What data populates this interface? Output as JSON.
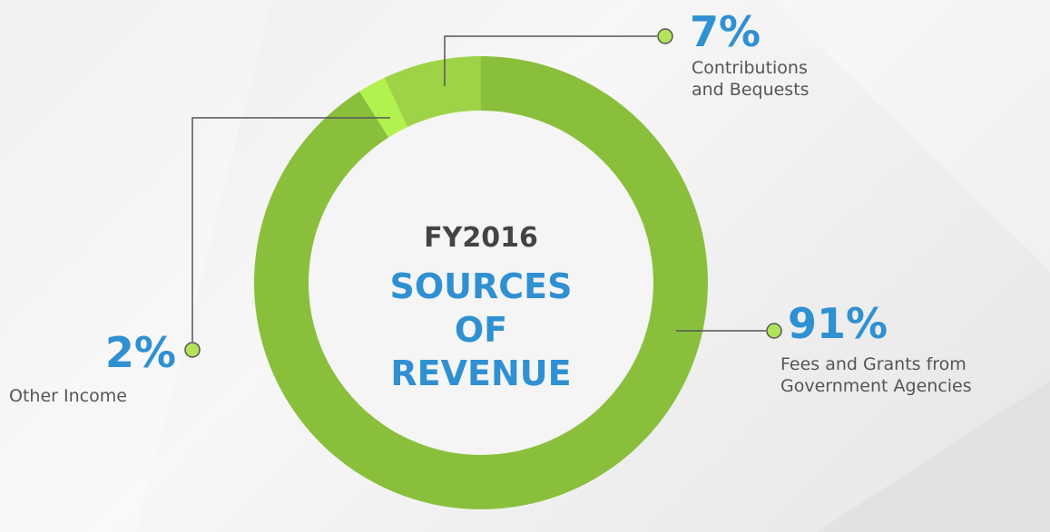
{
  "chart_data": {
    "type": "donut",
    "subtitle": "FY2016",
    "title": "SOURCES OF REVENUE",
    "categories": [
      "Fees and Grants from Government Agencies",
      "Other Income",
      "Contributions and Bequests"
    ],
    "values": [
      91,
      2,
      7
    ],
    "value_labels": [
      "91%",
      "2%",
      "7%"
    ],
    "colors": [
      "#8abf3c",
      "#b2f24e",
      "#9ed347"
    ]
  }
}
